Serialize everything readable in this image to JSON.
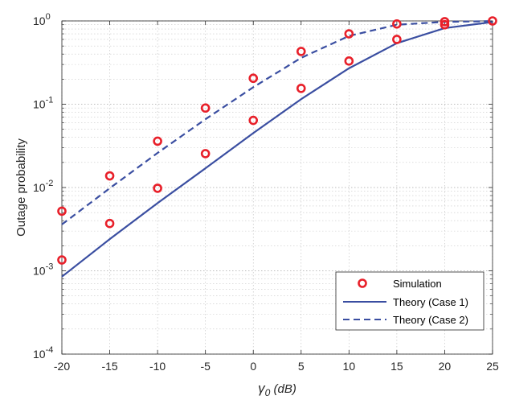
{
  "chart_data": {
    "type": "line",
    "y_scale": "log",
    "grid": true,
    "minor_grid": true,
    "legend_placement": "bottom-right",
    "xlabel_main": "γ",
    "xlabel_sub": "0",
    "xlabel_unit": " (dB)",
    "ylabel": "Outage probability",
    "xlim": [
      -20,
      25
    ],
    "ylim": [
      0.0001,
      1
    ],
    "x_ticks": [
      -20,
      -15,
      -10,
      -5,
      0,
      5,
      10,
      15,
      20,
      25
    ],
    "x_tick_labels": [
      "-20",
      "-15",
      "-10",
      "-5",
      "0",
      "5",
      "10",
      "15",
      "20",
      "25"
    ],
    "y_ticks": [
      {
        "value": 0.0001,
        "base": "10",
        "exp": "-4"
      },
      {
        "value": 0.001,
        "base": "10",
        "exp": "-3"
      },
      {
        "value": 0.01,
        "base": "10",
        "exp": "-2"
      },
      {
        "value": 0.1,
        "base": "10",
        "exp": "-1"
      },
      {
        "value": 1,
        "base": "10",
        "exp": "0"
      }
    ],
    "series": [
      {
        "name": "Simulation",
        "style": "markers",
        "color": "#e8202a",
        "points": [
          {
            "x": -20,
            "y": 0.0052
          },
          {
            "x": -20,
            "y": 0.00135
          },
          {
            "x": -15,
            "y": 0.0138
          },
          {
            "x": -15,
            "y": 0.0037
          },
          {
            "x": -10,
            "y": 0.036
          },
          {
            "x": -10,
            "y": 0.0098
          },
          {
            "x": -5,
            "y": 0.09
          },
          {
            "x": -5,
            "y": 0.0255
          },
          {
            "x": 0,
            "y": 0.205
          },
          {
            "x": 0,
            "y": 0.064
          },
          {
            "x": 5,
            "y": 0.43
          },
          {
            "x": 5,
            "y": 0.155
          },
          {
            "x": 10,
            "y": 0.7
          },
          {
            "x": 10,
            "y": 0.33
          },
          {
            "x": 15,
            "y": 0.92
          },
          {
            "x": 15,
            "y": 0.6
          },
          {
            "x": 20,
            "y": 0.98
          },
          {
            "x": 20,
            "y": 0.9
          },
          {
            "x": 25,
            "y": 1.0
          }
        ]
      },
      {
        "name": "Theory (Case 1)",
        "style": "solid",
        "color": "#3a4ea1",
        "points": [
          {
            "x": -20,
            "y": 0.00085
          },
          {
            "x": -15,
            "y": 0.0024
          },
          {
            "x": -10,
            "y": 0.0065
          },
          {
            "x": -5,
            "y": 0.017
          },
          {
            "x": 0,
            "y": 0.045
          },
          {
            "x": 5,
            "y": 0.115
          },
          {
            "x": 10,
            "y": 0.27
          },
          {
            "x": 15,
            "y": 0.54
          },
          {
            "x": 20,
            "y": 0.82
          },
          {
            "x": 25,
            "y": 0.97
          }
        ]
      },
      {
        "name": "Theory (Case 2)",
        "style": "dashed",
        "color": "#3a4ea1",
        "points": [
          {
            "x": -20,
            "y": 0.0036
          },
          {
            "x": -15,
            "y": 0.0098
          },
          {
            "x": -10,
            "y": 0.026
          },
          {
            "x": -5,
            "y": 0.066
          },
          {
            "x": 0,
            "y": 0.16
          },
          {
            "x": 5,
            "y": 0.36
          },
          {
            "x": 10,
            "y": 0.66
          },
          {
            "x": 15,
            "y": 0.9
          },
          {
            "x": 20,
            "y": 0.975
          },
          {
            "x": 25,
            "y": 0.995
          }
        ]
      }
    ]
  }
}
